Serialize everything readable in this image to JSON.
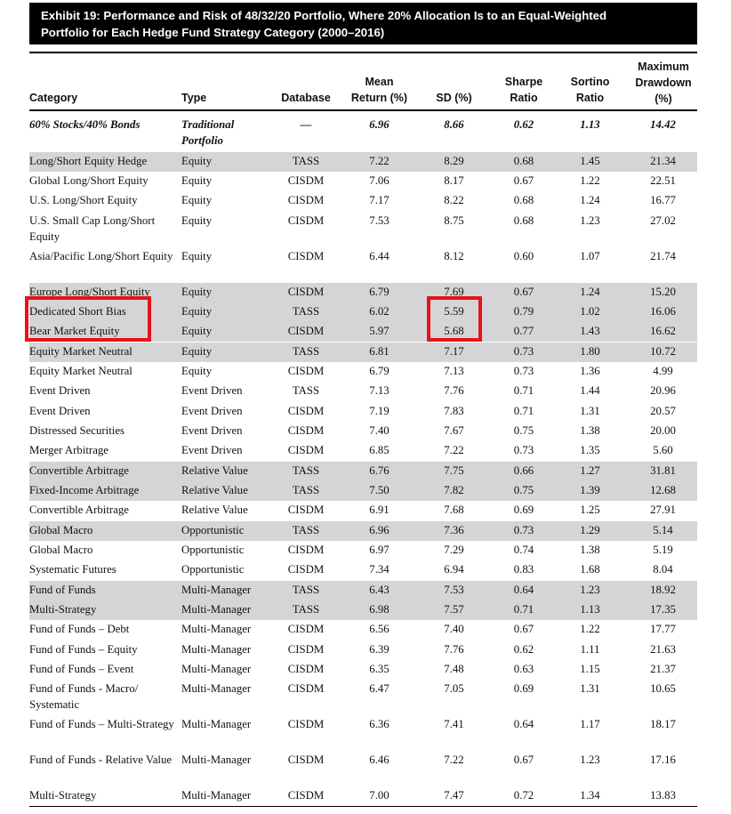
{
  "exhibit": {
    "title_line1": "Exhibit 19: Performance and Risk of 48/32/20 Portfolio, Where 20% Allocation Is to an Equal-Weighted",
    "title_line2": "Portfolio for Each Hedge Fund Strategy Category (2000–2016)"
  },
  "headers": {
    "category": "Category",
    "type": "Type",
    "database": "Database",
    "mean_line1": "Mean",
    "mean_line2": "Return (%)",
    "sd": "SD (%)",
    "sharpe_line1": "Sharpe",
    "sharpe_line2": "Ratio",
    "sortino_line1": "Sortino",
    "sortino_line2": "Ratio",
    "dd_line1": "Maximum",
    "dd_line2": "Drawdown",
    "dd_line3": "(%)"
  },
  "benchmark": {
    "category": "60% Stocks/40% Bonds",
    "type": "Traditional Portfolio",
    "database": "—",
    "mean": "6.96",
    "sd": "8.66",
    "sharpe": "0.62",
    "sortino": "1.13",
    "drawdown": "14.42"
  },
  "rows": [
    {
      "category": "Long/Short Equity Hedge",
      "type": "Equity",
      "database": "TASS",
      "mean": "7.22",
      "sd": "8.29",
      "sharpe": "0.68",
      "sortino": "1.45",
      "drawdown": "21.34"
    },
    {
      "category": "Global Long/Short Equity",
      "type": "Equity",
      "database": "CISDM",
      "mean": "7.06",
      "sd": "8.17",
      "sharpe": "0.67",
      "sortino": "1.22",
      "drawdown": "22.51"
    },
    {
      "category": "U.S. Long/Short Equity",
      "type": "Equity",
      "database": "CISDM",
      "mean": "7.17",
      "sd": "8.22",
      "sharpe": "0.68",
      "sortino": "1.24",
      "drawdown": "16.77"
    },
    {
      "category": "U.S. Small Cap Long/Short Equity",
      "type": "Equity",
      "database": "CISDM",
      "mean": "7.53",
      "sd": "8.75",
      "sharpe": "0.68",
      "sortino": "1.23",
      "drawdown": "27.02"
    },
    {
      "category": "Asia/Pacific Long/Short Equity",
      "type": "Equity",
      "database": "CISDM",
      "mean": "6.44",
      "sd": "8.12",
      "sharpe": "0.60",
      "sortino": "1.07",
      "drawdown": "21.74"
    },
    {
      "category": "Europe Long/Short Equity",
      "type": "Equity",
      "database": "CISDM",
      "mean": "6.79",
      "sd": "7.69",
      "sharpe": "0.67",
      "sortino": "1.24",
      "drawdown": "15.20"
    },
    {
      "category": "Dedicated Short Bias",
      "type": "Equity",
      "database": "TASS",
      "mean": "6.02",
      "sd": "5.59",
      "sharpe": "0.79",
      "sortino": "1.02",
      "drawdown": "16.06"
    },
    {
      "category": "Bear Market Equity",
      "type": "Equity",
      "database": "CISDM",
      "mean": "5.97",
      "sd": "5.68",
      "sharpe": "0.77",
      "sortino": "1.43",
      "drawdown": "16.62"
    },
    {
      "category": "Equity Market Neutral",
      "type": "Equity",
      "database": "TASS",
      "mean": "6.81",
      "sd": "7.17",
      "sharpe": "0.73",
      "sortino": "1.80",
      "drawdown": "10.72"
    },
    {
      "category": "Equity Market Neutral",
      "type": "Equity",
      "database": "CISDM",
      "mean": "6.79",
      "sd": "7.13",
      "sharpe": "0.73",
      "sortino": "1.36",
      "drawdown": "4.99"
    },
    {
      "category": "Event Driven",
      "type": "Event Driven",
      "database": "TASS",
      "mean": "7.13",
      "sd": "7.76",
      "sharpe": "0.71",
      "sortino": "1.44",
      "drawdown": "20.96"
    },
    {
      "category": "Event Driven",
      "type": "Event Driven",
      "database": "CISDM",
      "mean": "7.19",
      "sd": "7.83",
      "sharpe": "0.71",
      "sortino": "1.31",
      "drawdown": "20.57"
    },
    {
      "category": "Distressed Securities",
      "type": "Event Driven",
      "database": "CISDM",
      "mean": "7.40",
      "sd": "7.67",
      "sharpe": "0.75",
      "sortino": "1.38",
      "drawdown": "20.00"
    },
    {
      "category": "Merger Arbitrage",
      "type": "Event Driven",
      "database": "CISDM",
      "mean": "6.85",
      "sd": "7.22",
      "sharpe": "0.73",
      "sortino": "1.35",
      "drawdown": "5.60"
    },
    {
      "category": "Convertible Arbitrage",
      "type": "Relative Value",
      "database": "TASS",
      "mean": "6.76",
      "sd": "7.75",
      "sharpe": "0.66",
      "sortino": "1.27",
      "drawdown": "31.81"
    },
    {
      "category": "Fixed-Income Arbitrage",
      "type": "Relative Value",
      "database": "TASS",
      "mean": "7.50",
      "sd": "7.82",
      "sharpe": "0.75",
      "sortino": "1.39",
      "drawdown": "12.68"
    },
    {
      "category": "Convertible Arbitrage",
      "type": "Relative Value",
      "database": "CISDM",
      "mean": "6.91",
      "sd": "7.68",
      "sharpe": "0.69",
      "sortino": "1.25",
      "drawdown": "27.91"
    },
    {
      "category": "Global Macro",
      "type": "Opportunistic",
      "database": "TASS",
      "mean": "6.96",
      "sd": "7.36",
      "sharpe": "0.73",
      "sortino": "1.29",
      "drawdown": "5.14"
    },
    {
      "category": "Global Macro",
      "type": "Opportunistic",
      "database": "CISDM",
      "mean": "6.97",
      "sd": "7.29",
      "sharpe": "0.74",
      "sortino": "1.38",
      "drawdown": "5.19"
    },
    {
      "category": "Systematic Futures",
      "type": "Opportunistic",
      "database": "CISDM",
      "mean": "7.34",
      "sd": "6.94",
      "sharpe": "0.83",
      "sortino": "1.68",
      "drawdown": "8.04"
    },
    {
      "category": "Fund of Funds",
      "type": "Multi-Manager",
      "database": "TASS",
      "mean": "6.43",
      "sd": "7.53",
      "sharpe": "0.64",
      "sortino": "1.23",
      "drawdown": "18.92"
    },
    {
      "category": "Multi-Strategy",
      "type": "Multi-Manager",
      "database": "TASS",
      "mean": "6.98",
      "sd": "7.57",
      "sharpe": "0.71",
      "sortino": "1.13",
      "drawdown": "17.35"
    },
    {
      "category": "Fund of Funds – Debt",
      "type": "Multi-Manager",
      "database": "CISDM",
      "mean": "6.56",
      "sd": "7.40",
      "sharpe": "0.67",
      "sortino": "1.22",
      "drawdown": "17.77"
    },
    {
      "category": "Fund of Funds – Equity",
      "type": "Multi-Manager",
      "database": "CISDM",
      "mean": "6.39",
      "sd": "7.76",
      "sharpe": "0.62",
      "sortino": "1.11",
      "drawdown": "21.63"
    },
    {
      "category": "Fund of Funds – Event",
      "type": "Multi-Manager",
      "database": "CISDM",
      "mean": "6.35",
      "sd": "7.48",
      "sharpe": "0.63",
      "sortino": "1.15",
      "drawdown": "21.37"
    },
    {
      "category": "Fund of Funds - Macro/ Systematic",
      "type": "Multi-Manager",
      "database": "CISDM",
      "mean": "6.47",
      "sd": "7.05",
      "sharpe": "0.69",
      "sortino": "1.31",
      "drawdown": "10.65"
    },
    {
      "category": "Fund of Funds – Multi-Strategy",
      "type": "Multi-Manager",
      "database": "CISDM",
      "mean": "6.36",
      "sd": "7.41",
      "sharpe": "0.64",
      "sortino": "1.17",
      "drawdown": "18.17"
    },
    {
      "category": "Fund of Funds - Relative Value",
      "type": "Multi-Manager",
      "database": "CISDM",
      "mean": "6.46",
      "sd": "7.22",
      "sharpe": "0.67",
      "sortino": "1.23",
      "drawdown": "17.16"
    },
    {
      "category": "Multi-Strategy",
      "type": "Multi-Manager",
      "database": "CISDM",
      "mean": "7.00",
      "sd": "7.47",
      "sharpe": "0.72",
      "sortino": "1.34",
      "drawdown": "13.83"
    }
  ],
  "colors": {
    "row_shade": "#d5d5d7",
    "highlight": "#e5141a",
    "banner": "#000000"
  }
}
